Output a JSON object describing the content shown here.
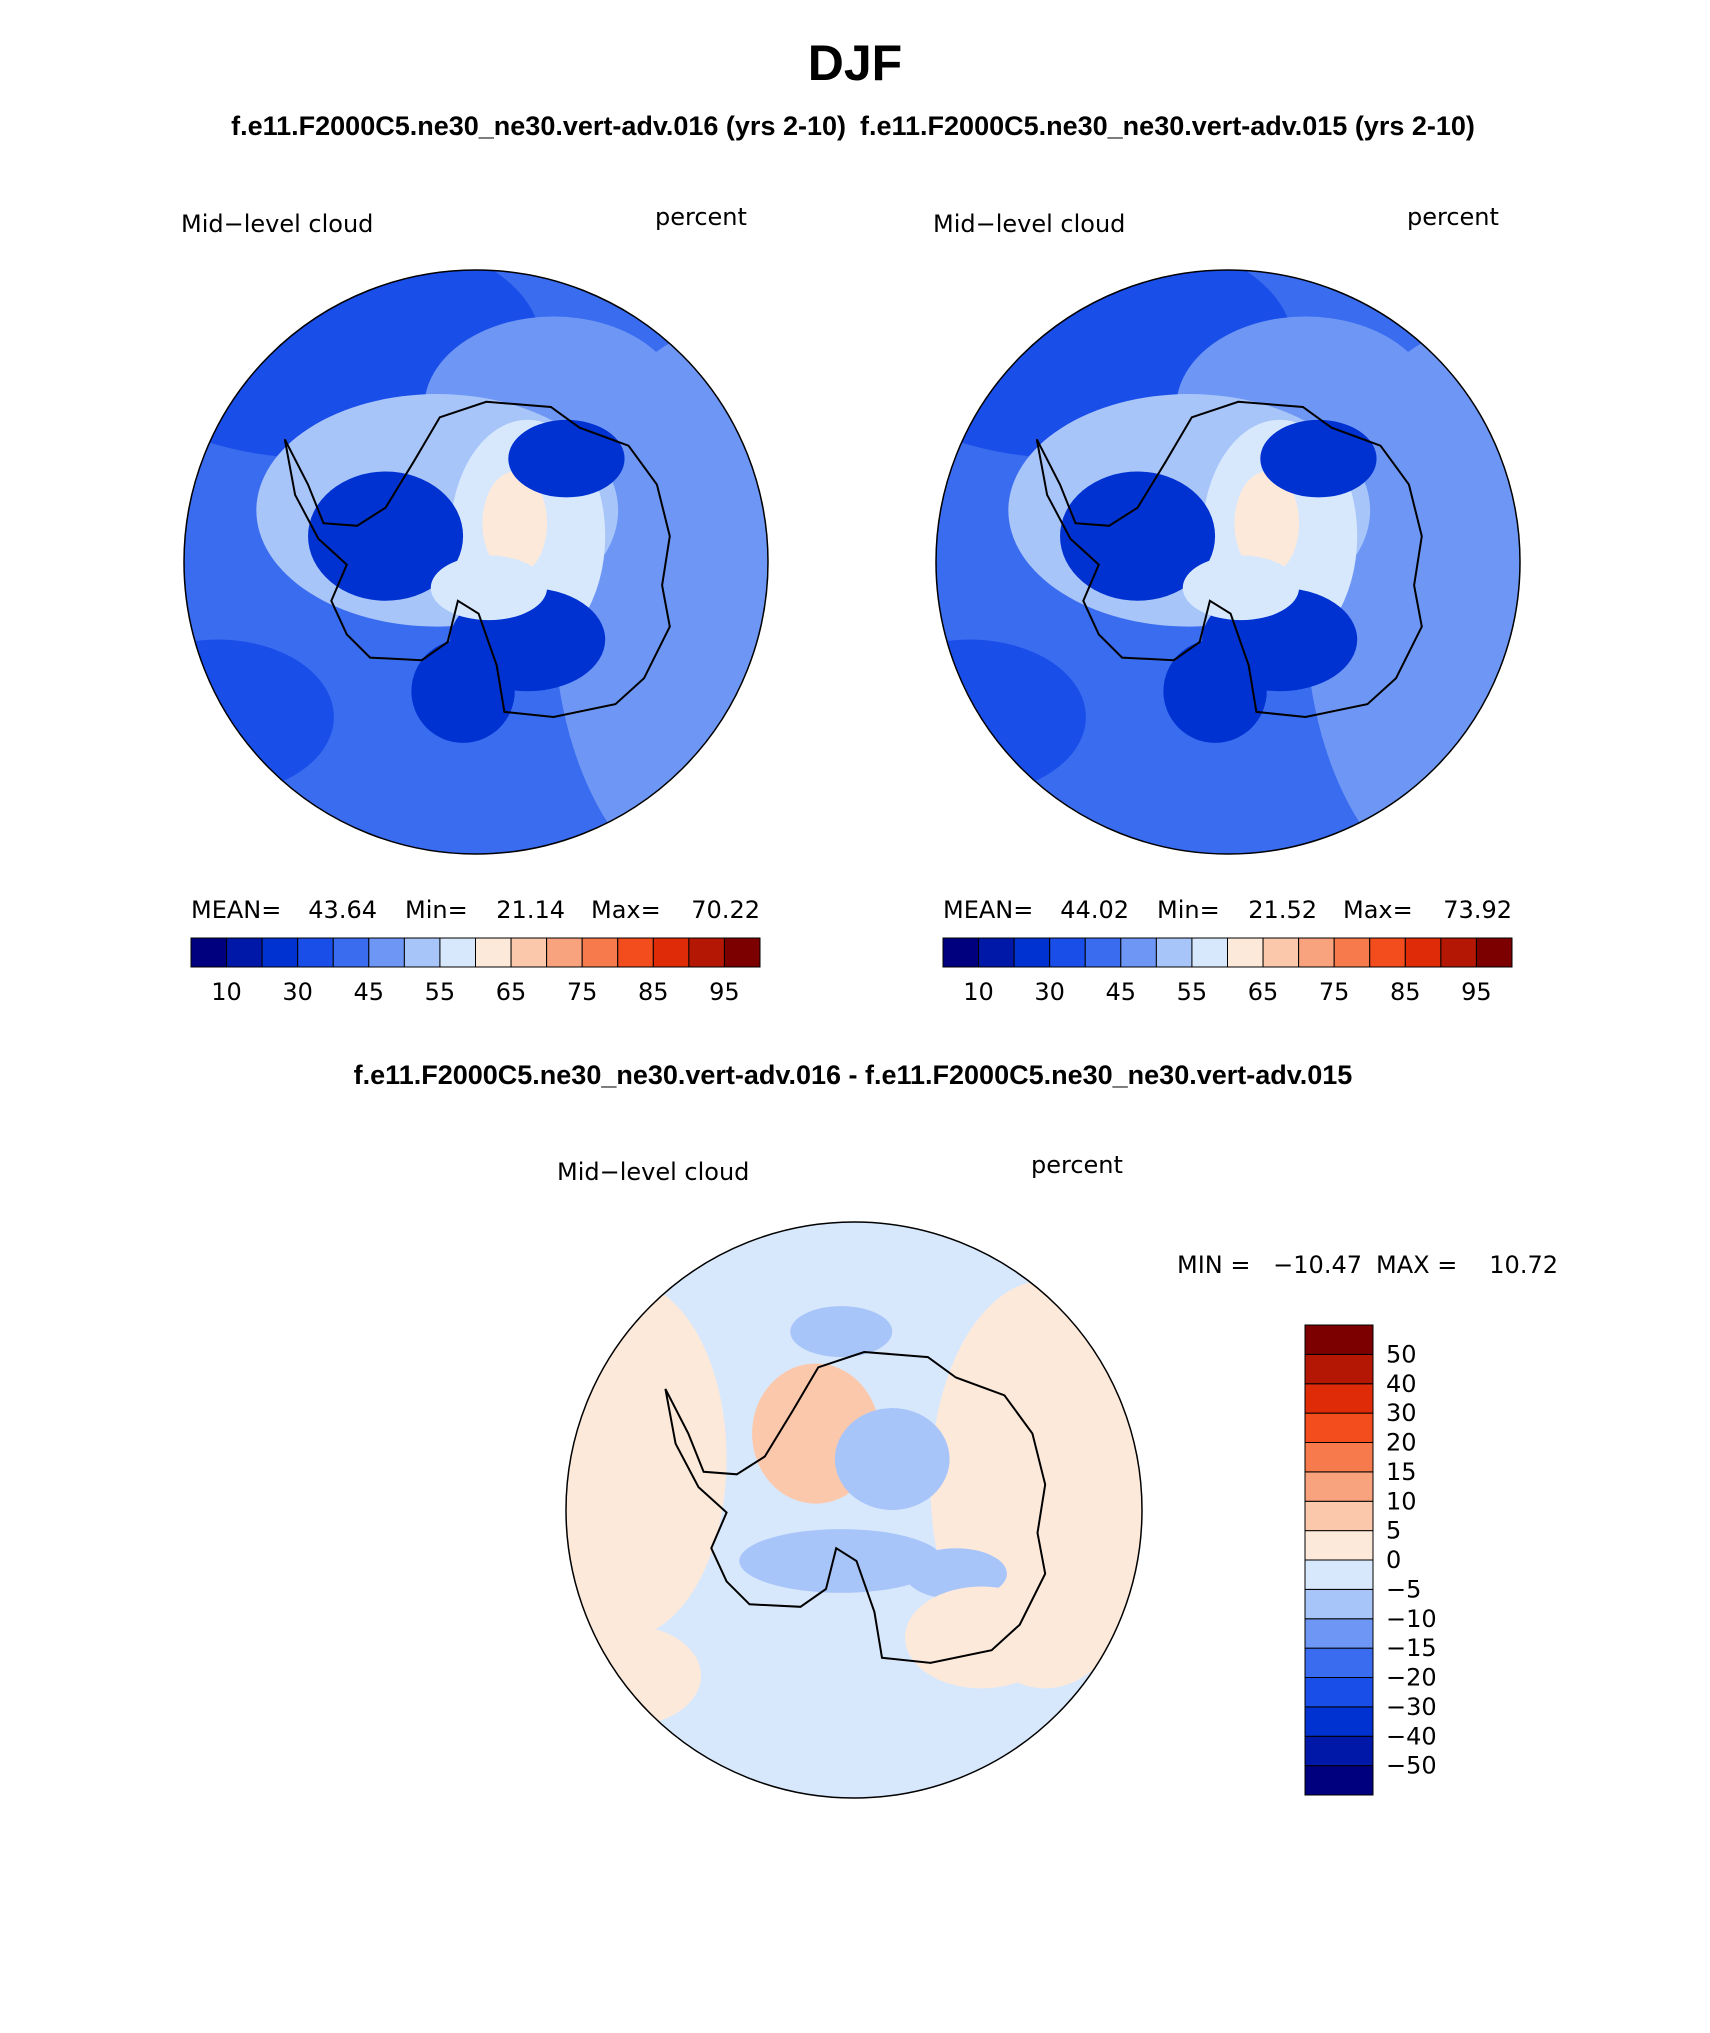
{
  "title": "DJF",
  "panels": [
    {
      "case": "f.e11.F2000C5.ne30_ne30.vert-adv.016 (yrs 2-10)",
      "left_label": "Mid−level cloud",
      "right_label": "percent",
      "stats": [
        {
          "label": "MEAN=",
          "value": "43.64"
        },
        {
          "label": "Min=",
          "value": "21.14"
        },
        {
          "label": "Max=",
          "value": "70.22"
        }
      ]
    },
    {
      "case": "f.e11.F2000C5.ne30_ne30.vert-adv.015 (yrs 2-10)",
      "left_label": "Mid−level cloud",
      "right_label": "percent",
      "stats": [
        {
          "label": "MEAN=",
          "value": "44.02"
        },
        {
          "label": "Min=",
          "value": "21.52"
        },
        {
          "label": "Max=",
          "value": "73.92"
        }
      ]
    }
  ],
  "colorbar": {
    "colors": [
      "#00007f",
      "#0018a8",
      "#0032d2",
      "#1a4ee8",
      "#3a6cf0",
      "#6e97f5",
      "#a8c5fa",
      "#d8e8fc",
      "#fde9da",
      "#fcc8ab",
      "#f9a27e",
      "#f67a4c",
      "#f34d1e",
      "#e02b08",
      "#b41805",
      "#7c0000"
    ],
    "labels": [
      "10",
      "30",
      "45",
      "55",
      "65",
      "75",
      "85",
      "95"
    ]
  },
  "difference": {
    "title": "f.e11.F2000C5.ne30_ne30.vert-adv.016 - f.e11.F2000C5.ne30_ne30.vert-adv.015",
    "left_label": "Mid−level cloud",
    "right_label": "percent",
    "stats": [
      {
        "label": "MIN =",
        "value": "−10.47"
      },
      {
        "label": "MAX =",
        "value": "10.72"
      }
    ],
    "colorbar_labels": [
      "50",
      "40",
      "30",
      "20",
      "15",
      "10",
      "5",
      "0",
      "−5",
      "−10",
      "−15",
      "−20",
      "−30",
      "−40",
      "−50"
    ]
  }
}
